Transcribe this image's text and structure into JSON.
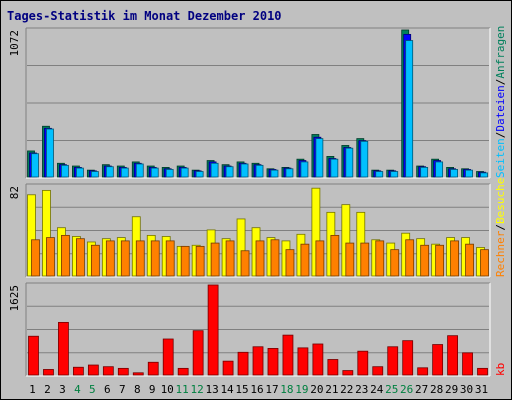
{
  "title": "Tages-Statistik im Monat Dezember 2010",
  "colors": {
    "background": "#c0c0c0",
    "title": "#000080",
    "anfragen": "#00805c",
    "dateien": "#0000ff",
    "seiten": "#00c0ff",
    "besuche": "#ffff00",
    "rechner": "#ff8000",
    "kb": "#ff0000",
    "weekend_label": "#008040",
    "weekday_label": "#000000",
    "legend_dateien": "#0000ff",
    "legend_seiten": "#00c0ff",
    "legend_anfragen": "#00805c",
    "legend_rechner": "#ff8000",
    "legend_besuche": "#ffff00",
    "legend_kb": "#ff0000"
  },
  "chart_data": [
    {
      "type": "bar",
      "panel": "top",
      "max_label": "1072",
      "ylim": [
        0,
        1072
      ],
      "legend": [
        "Anfragen",
        "Dateien",
        "Seiten"
      ],
      "categories": [
        "1",
        "2",
        "3",
        "4",
        "5",
        "6",
        "7",
        "8",
        "9",
        "10",
        "11",
        "12",
        "13",
        "14",
        "15",
        "16",
        "17",
        "18",
        "19",
        "20",
        "21",
        "22",
        "23",
        "24",
        "25",
        "26",
        "27",
        "28",
        "29",
        "30",
        "31"
      ],
      "series": [
        {
          "name": "Anfragen",
          "values": [
            190,
            370,
            100,
            80,
            50,
            90,
            80,
            110,
            80,
            70,
            80,
            50,
            120,
            90,
            110,
            100,
            60,
            70,
            130,
            310,
            150,
            230,
            280,
            50,
            50,
            1072,
            80,
            130,
            70,
            60,
            40
          ]
        },
        {
          "name": "Dateien",
          "values": [
            175,
            355,
            90,
            70,
            45,
            80,
            70,
            100,
            70,
            60,
            70,
            45,
            110,
            80,
            100,
            90,
            55,
            65,
            120,
            290,
            135,
            215,
            265,
            45,
            45,
            1040,
            75,
            120,
            60,
            55,
            35
          ]
        },
        {
          "name": "Seiten",
          "values": [
            170,
            350,
            85,
            65,
            40,
            75,
            65,
            95,
            65,
            55,
            65,
            40,
            100,
            75,
            95,
            85,
            50,
            60,
            110,
            280,
            130,
            210,
            260,
            40,
            40,
            995,
            70,
            110,
            55,
            50,
            30
          ]
        }
      ]
    },
    {
      "type": "bar",
      "panel": "middle",
      "max_label": "82",
      "ylim": [
        0,
        82
      ],
      "legend": [
        "Rechner",
        "Besuche"
      ],
      "categories": [
        "1",
        "2",
        "3",
        "4",
        "5",
        "6",
        "7",
        "8",
        "9",
        "10",
        "11",
        "12",
        "13",
        "14",
        "15",
        "16",
        "17",
        "18",
        "19",
        "20",
        "21",
        "22",
        "23",
        "24",
        "25",
        "26",
        "27",
        "28",
        "29",
        "30",
        "31"
      ],
      "series": [
        {
          "name": "Besuche",
          "values": [
            74,
            78,
            44,
            36,
            31,
            34,
            35,
            54,
            37,
            36,
            27,
            28,
            42,
            34,
            52,
            44,
            35,
            32,
            38,
            80,
            58,
            65,
            58,
            33,
            30,
            39,
            34,
            29,
            35,
            35,
            26
          ]
        },
        {
          "name": "Rechner",
          "values": [
            33,
            35,
            37,
            34,
            28,
            32,
            32,
            32,
            32,
            32,
            27,
            27,
            30,
            32,
            23,
            32,
            33,
            24,
            29,
            32,
            37,
            30,
            30,
            32,
            24,
            33,
            28,
            28,
            32,
            29,
            24
          ]
        }
      ]
    },
    {
      "type": "bar",
      "panel": "bottom",
      "max_label": "1625",
      "ylim": [
        0,
        1625
      ],
      "legend": [
        "kb"
      ],
      "categories": [
        "1",
        "2",
        "3",
        "4",
        "5",
        "6",
        "7",
        "8",
        "9",
        "10",
        "11",
        "12",
        "13",
        "14",
        "15",
        "16",
        "17",
        "18",
        "19",
        "20",
        "21",
        "22",
        "23",
        "24",
        "25",
        "26",
        "27",
        "28",
        "29",
        "30",
        "31"
      ],
      "series": [
        {
          "name": "kb",
          "values": [
            700,
            100,
            950,
            140,
            180,
            150,
            120,
            40,
            230,
            650,
            120,
            800,
            1625,
            250,
            410,
            510,
            480,
            720,
            490,
            560,
            280,
            80,
            430,
            150,
            510,
            620,
            130,
            550,
            710,
            400,
            120
          ]
        }
      ]
    }
  ],
  "x_axis": {
    "labels": [
      "1",
      "2",
      "3",
      "4",
      "5",
      "6",
      "7",
      "8",
      "9",
      "10",
      "11",
      "12",
      "13",
      "14",
      "15",
      "16",
      "17",
      "18",
      "19",
      "20",
      "21",
      "22",
      "23",
      "24",
      "25",
      "26",
      "27",
      "28",
      "29",
      "30",
      "31"
    ],
    "weekend": [
      4,
      5,
      11,
      12,
      18,
      19,
      25,
      26
    ]
  }
}
